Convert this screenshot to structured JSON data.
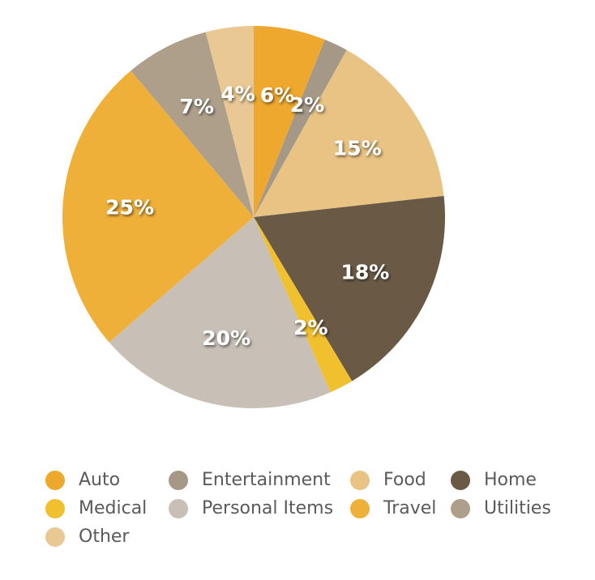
{
  "chart_data": {
    "type": "pie",
    "title": "",
    "start": "top",
    "direction": "clockwise",
    "legend_position": "bottom",
    "slices": [
      {
        "name": "Auto",
        "value": 6,
        "label": "6%",
        "color": "#EEA82E"
      },
      {
        "name": "Entertainment",
        "value": 2,
        "label": "2%",
        "color": "#A69886"
      },
      {
        "name": "Food",
        "value": 15,
        "label": "15%",
        "color": "#E9C384"
      },
      {
        "name": "Home",
        "value": 18,
        "label": "18%",
        "color": "#6A5A45"
      },
      {
        "name": "Medical",
        "value": 2,
        "label": "2%",
        "color": "#F1C02F"
      },
      {
        "name": "Personal Items",
        "value": 20,
        "label": "20%",
        "color": "#C8BFB7"
      },
      {
        "name": "Travel",
        "value": 25,
        "label": "25%",
        "color": "#EFB039"
      },
      {
        "name": "Utilities",
        "value": 7,
        "label": "7%",
        "color": "#AE9F8B"
      },
      {
        "name": "Other",
        "value": 4,
        "label": "4%",
        "color": "#E9C894"
      }
    ]
  }
}
